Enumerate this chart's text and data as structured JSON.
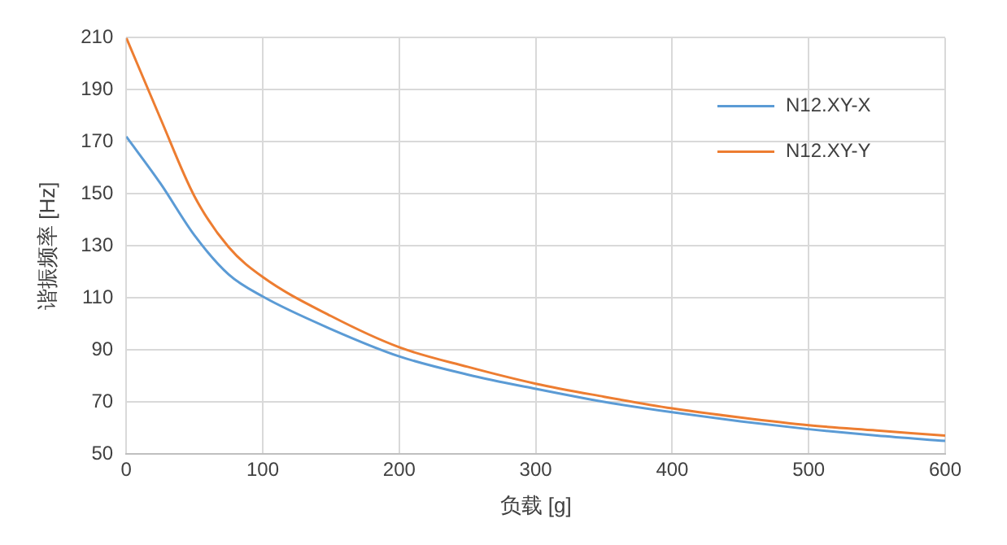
{
  "chart_data": {
    "type": "line",
    "xlabel": "负载 [g]",
    "ylabel": "谐振频率 [Hz]",
    "x": [
      0,
      25,
      50,
      75,
      100,
      150,
      200,
      250,
      300,
      350,
      400,
      450,
      500,
      550,
      600
    ],
    "series": [
      {
        "name": "N12.XY-X",
        "color": "#5b9bd5",
        "values": [
          172,
          154,
          134,
          119,
          110.5,
          98,
          87.5,
          80.5,
          75,
          70,
          66,
          62.5,
          59.5,
          57,
          55
        ]
      },
      {
        "name": "N12.XY-Y",
        "color": "#ed7d31",
        "values": [
          210,
          179,
          149,
          129.5,
          118,
          103,
          91,
          83.5,
          77,
          72,
          67.5,
          64,
          61,
          59,
          57
        ]
      }
    ],
    "xlim": [
      0,
      600
    ],
    "xticks": [
      0,
      100,
      200,
      300,
      400,
      500,
      600
    ],
    "ylim": [
      50,
      210
    ],
    "yticks": [
      50,
      70,
      90,
      110,
      130,
      150,
      170,
      190,
      210
    ],
    "grid": true,
    "legend": "top right",
    "marker": "none",
    "line_style": "solid"
  }
}
